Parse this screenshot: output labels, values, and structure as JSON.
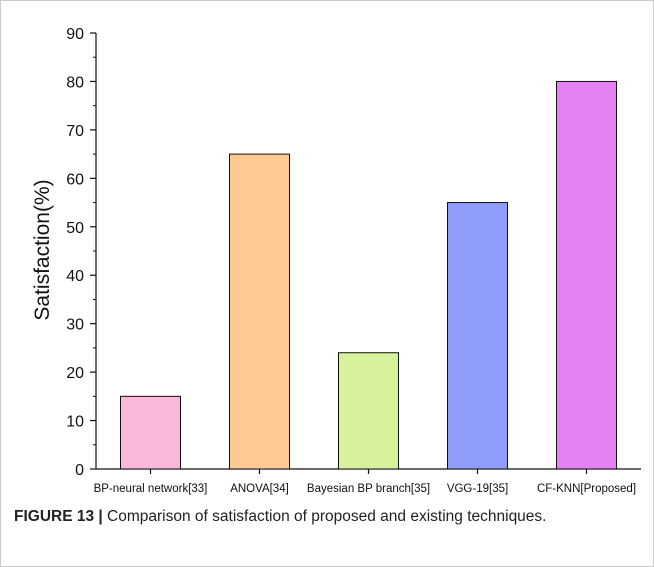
{
  "chart_data": {
    "type": "bar",
    "categories": [
      "BP-neural network[33]",
      "ANOVA[34]",
      "Bayesian BP branch[35]",
      "VGG-19[35]",
      "CF-KNN[Proposed]"
    ],
    "values": [
      15,
      65,
      24,
      55,
      80
    ],
    "bar_colors": [
      "#f9b7dc",
      "#ffc994",
      "#d6f29a",
      "#8f9cf9",
      "#e680f5"
    ],
    "ylabel": "Satisfaction(%)",
    "xlabel": "",
    "ylim": [
      0,
      90
    ],
    "yticks": [
      0,
      10,
      20,
      30,
      40,
      50,
      60,
      70,
      80,
      90
    ],
    "grid": false,
    "legend": "none"
  },
  "caption": {
    "label": "FIGURE 13 |",
    "text": " Comparison of satisfaction of proposed and existing techniques."
  }
}
